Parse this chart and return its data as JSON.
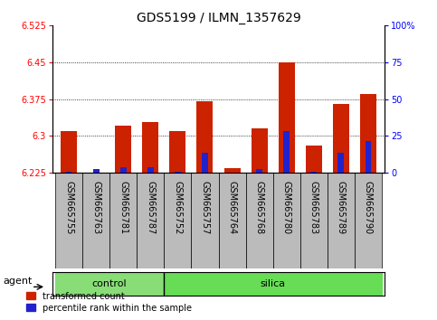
{
  "title": "GDS5199 / ILMN_1357629",
  "samples": [
    "GSM665755",
    "GSM665763",
    "GSM665781",
    "GSM665787",
    "GSM665752",
    "GSM665757",
    "GSM665764",
    "GSM665768",
    "GSM665780",
    "GSM665783",
    "GSM665789",
    "GSM665790"
  ],
  "n_control": 4,
  "red_values": [
    6.31,
    6.226,
    6.322,
    6.328,
    6.31,
    6.37,
    6.235,
    6.315,
    6.45,
    6.28,
    6.365,
    6.385
  ],
  "blue_values": [
    6.228,
    6.232,
    6.237,
    6.237,
    6.228,
    6.265,
    6.226,
    6.232,
    6.31,
    6.228,
    6.265,
    6.29
  ],
  "base": 6.225,
  "ylim_left": [
    6.225,
    6.525
  ],
  "yticks_left": [
    6.225,
    6.3,
    6.375,
    6.45,
    6.525
  ],
  "yticks_right": [
    0,
    25,
    50,
    75,
    100
  ],
  "grid_values": [
    6.3,
    6.375,
    6.45
  ],
  "bar_width": 0.6,
  "red_color": "#cc2200",
  "blue_color": "#2222cc",
  "control_color": "#88dd77",
  "silica_color": "#66dd55",
  "bg_color": "#bbbbbb",
  "agent_label": "agent",
  "group_labels": [
    "control",
    "silica"
  ],
  "legend_red": "transformed count",
  "legend_blue": "percentile rank within the sample",
  "title_fontsize": 10,
  "tick_fontsize": 7,
  "label_fontsize": 8
}
